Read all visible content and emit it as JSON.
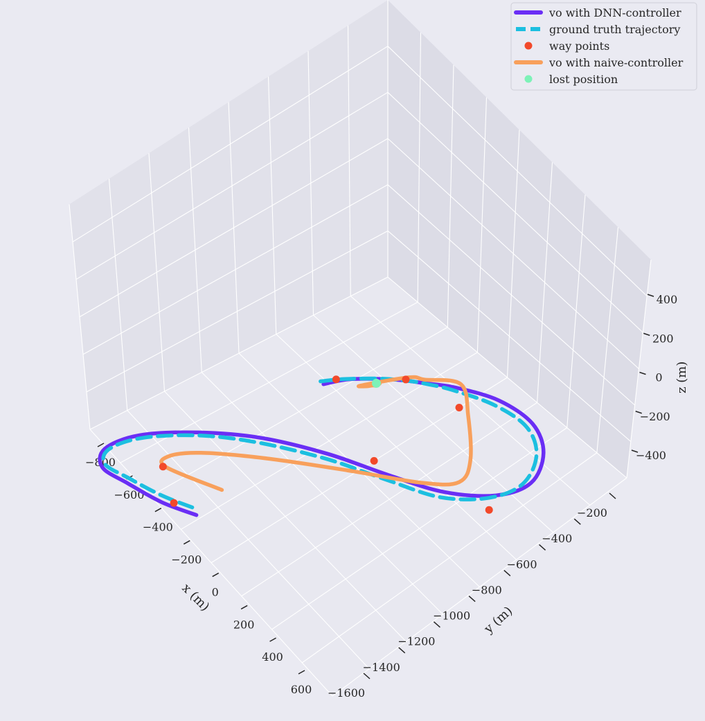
{
  "chart_data": {
    "type": "line",
    "projection": "3d",
    "title": "",
    "xlabel": "x (m)",
    "ylabel": "y (m)",
    "zlabel": "z (m)",
    "x_ticks": [
      "−800",
      "−600",
      "−400",
      "−200",
      "0",
      "200",
      "400",
      "600"
    ],
    "y_ticks": [
      "−200",
      "−400",
      "−600",
      "−800",
      "−1000",
      "−1200",
      "−1400",
      "−1600"
    ],
    "z_ticks": [
      "400",
      "200",
      "0",
      "−200",
      "−400"
    ],
    "grid": true,
    "legend_position": "top-right",
    "legend": [
      {
        "label": "vo with DNN-controller",
        "color": "#6a2ef5",
        "style": "line"
      },
      {
        "label": "ground truth trajectory",
        "color": "#1cbfe0",
        "style": "dashed"
      },
      {
        "label": "way points",
        "color": "#f2492a",
        "style": "marker"
      },
      {
        "label": "vo with naive-controller",
        "color": "#f8a05c",
        "style": "line"
      },
      {
        "label": "lost position",
        "color": "#7df2b8",
        "style": "marker"
      }
    ],
    "series": [
      {
        "name": "vo with DNN-controller",
        "points": [
          [
            -320,
            -200
          ],
          [
            -450,
            -120
          ],
          [
            -600,
            -60
          ],
          [
            -720,
            -20
          ],
          [
            -790,
            -90
          ],
          [
            -770,
            -260
          ],
          [
            -650,
            -480
          ],
          [
            -480,
            -680
          ],
          [
            -250,
            -850
          ],
          [
            0,
            -980
          ],
          [
            220,
            -1100
          ],
          [
            380,
            -1250
          ],
          [
            430,
            -1400
          ],
          [
            340,
            -1540
          ],
          [
            180,
            -1610
          ],
          [
            -20,
            -1590
          ],
          [
            -200,
            -1500
          ],
          [
            -300,
            -1420
          ],
          [
            -360,
            -1370
          ],
          [
            -430,
            -1300
          ],
          [
            -520,
            -1180
          ],
          [
            -560,
            -1080
          ]
        ]
      },
      {
        "name": "ground truth trajectory",
        "points": [
          [
            -360,
            -210
          ],
          [
            -480,
            -140
          ],
          [
            -620,
            -80
          ],
          [
            -730,
            -40
          ],
          [
            -780,
            -110
          ],
          [
            -750,
            -270
          ],
          [
            -630,
            -480
          ],
          [
            -460,
            -660
          ],
          [
            -230,
            -830
          ],
          [
            10,
            -955
          ],
          [
            230,
            -1070
          ],
          [
            370,
            -1220
          ],
          [
            410,
            -1370
          ],
          [
            330,
            -1510
          ],
          [
            180,
            -1580
          ],
          [
            -10,
            -1560
          ],
          [
            -200,
            -1480
          ],
          [
            -310,
            -1410
          ],
          [
            -360,
            -1370
          ],
          [
            -440,
            -1290
          ],
          [
            -530,
            -1170
          ],
          [
            -580,
            -1080
          ]
        ]
      },
      {
        "name": "vo with naive-controller",
        "points": [
          [
            -360,
            -370
          ],
          [
            -580,
            -250
          ],
          [
            -620,
            -290
          ],
          [
            -560,
            -420
          ],
          [
            -380,
            -630
          ],
          [
            -130,
            -860
          ],
          [
            120,
            -1060
          ],
          [
            220,
            -1180
          ],
          [
            160,
            -1290
          ],
          [
            -40,
            -1440
          ],
          [
            -200,
            -1530
          ],
          [
            -320,
            -1430
          ],
          [
            -370,
            -1390
          ],
          [
            -460,
            -1200
          ],
          [
            -440,
            -1220
          ],
          [
            -430,
            -1240
          ],
          [
            -420,
            -1250
          ],
          [
            -420,
            -1270
          ]
        ]
      }
    ],
    "way_points": [
      [
        -420,
        -160
      ],
      [
        -590,
        -240
      ],
      [
        -100,
        -980
      ],
      [
        420,
        -1180
      ],
      [
        -100,
        -1440
      ],
      [
        -370,
        -1370
      ],
      [
        -550,
        -1140
      ]
    ],
    "lost_position": [
      [
        -430,
        -1260
      ]
    ]
  }
}
